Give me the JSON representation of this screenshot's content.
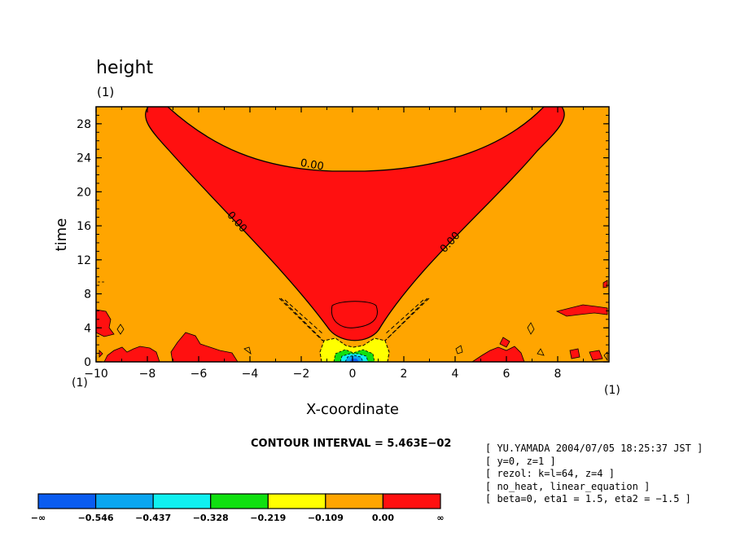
{
  "chart_data": {
    "type": "contour",
    "title": "height",
    "title_unit": "(1)",
    "xlabel": "X-coordinate",
    "ylabel": "time",
    "x_unit": "(1)",
    "y_unit": "(1)",
    "xlim": [
      -10,
      10
    ],
    "ylim": [
      0,
      30
    ],
    "xticks": [
      -10,
      -8,
      -6,
      -4,
      -2,
      0,
      2,
      4,
      6,
      8
    ],
    "xtick_labels": [
      "−10",
      "−8",
      "−6",
      "−4",
      "−2",
      "0",
      "2",
      "4",
      "6",
      "8"
    ],
    "yticks": [
      0,
      4,
      8,
      12,
      16,
      20,
      24,
      28
    ],
    "ytick_labels": [
      "0",
      "4",
      "8",
      "12",
      "16",
      "20",
      "24",
      "28"
    ],
    "contour_labels": [
      {
        "text": "0.00",
        "x": -4.6,
        "y": 16.2,
        "angle": 48
      },
      {
        "text": "0.00",
        "x": -1.6,
        "y": 22.8,
        "angle": 10
      },
      {
        "text": "0.00",
        "x": 3.9,
        "y": 13.8,
        "angle": -48
      }
    ],
    "contour_interval_text": "CONTOUR INTERVAL = 5.463E−02",
    "colorbar": {
      "levels": [
        "−∞",
        "−0.546",
        "−0.437",
        "−0.328",
        "−0.219",
        "−0.109",
        "0.00",
        "∞"
      ],
      "colors": [
        "#0a5cf0",
        "#0aa6f0",
        "#10f0f0",
        "#10e010",
        "#ffff00",
        "#ffa500",
        "#ff1010"
      ]
    },
    "info_lines": [
      "[ YU.YAMADA 2004/07/05 18:25:37 JST ]",
      "[ y=0, z=1 ]",
      "[ rezol: k=l=64, z=4 ]",
      "[ no_heat, linear_equation ]",
      "[ beta=0, eta1 = 1.5, eta2 = −1.5 ]"
    ]
  }
}
